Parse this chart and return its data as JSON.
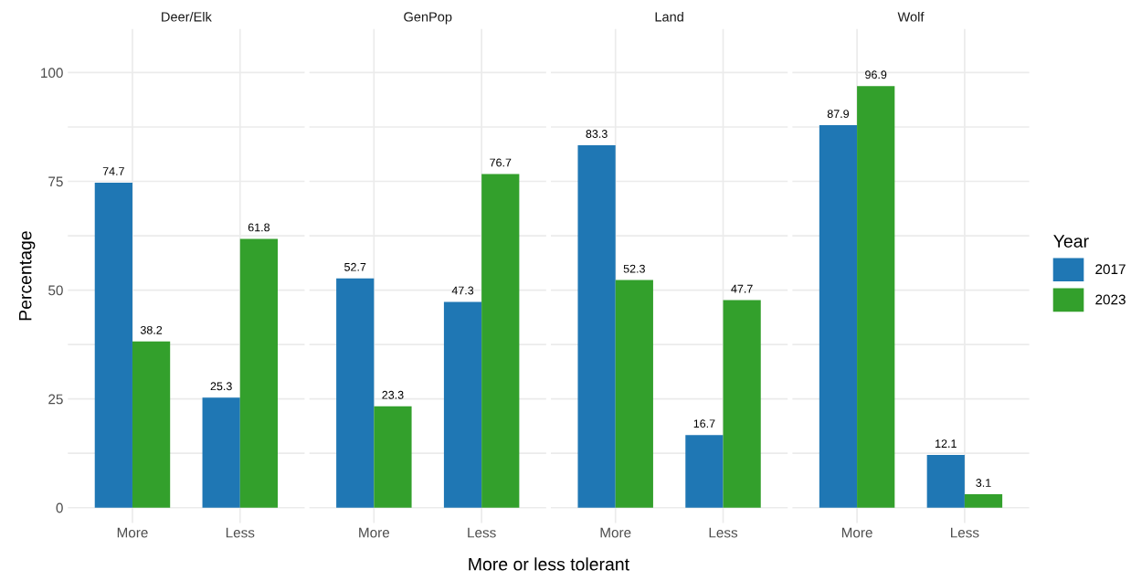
{
  "chart_data": [
    {
      "type": "bar",
      "title": "Deer/Elk",
      "ylabel": "Percentage",
      "categories": [
        "More",
        "Less"
      ],
      "series": [
        {
          "name": "2017",
          "color": "#1f77b4",
          "values": [
            74.7,
            25.3
          ]
        },
        {
          "name": "2023",
          "color": "#33a02c",
          "values": [
            38.2,
            61.8
          ]
        }
      ],
      "ylim": [
        -3.5,
        110
      ],
      "yticks": [
        0,
        {
          "value": 12.5,
          "label": null
        },
        25,
        {
          "value": 37.5,
          "label": null
        },
        50,
        {
          "value": 62.5,
          "label": null
        },
        75,
        {
          "value": 87.5,
          "label": null
        },
        100
      ],
      "grid": true,
      "data_labels": true,
      "legend": "right",
      "legend_title": "Year"
    },
    {
      "type": "bar",
      "title": "GenPop",
      "xlabel": "More or less tolerant",
      "categories": [
        "More",
        "Less"
      ],
      "series": [
        {
          "color": "#1f77b4",
          "values": [
            52.7,
            47.3
          ]
        },
        {
          "color": "#33a02c",
          "values": [
            23.3,
            76.7
          ]
        }
      ],
      "ylim": [
        -3.5,
        110
      ],
      "yticks": [
        0,
        {
          "value": 12.5,
          "label": null
        },
        25,
        {
          "value": 37.5,
          "label": null
        },
        50,
        {
          "value": 62.5,
          "label": null
        },
        75,
        {
          "value": 87.5,
          "label": null
        },
        100
      ],
      "tick_labels": "x",
      "grid": true,
      "data_labels": true
    },
    {
      "type": "bar",
      "title": "Land",
      "categories": [
        "More",
        "Less"
      ],
      "series": [
        {
          "color": "#1f77b4",
          "values": [
            83.3,
            16.7
          ]
        },
        {
          "color": "#33a02c",
          "values": [
            52.3,
            47.7
          ]
        }
      ],
      "ylim": [
        -3.5,
        110
      ],
      "yticks": [
        0,
        {
          "value": 12.5,
          "label": null
        },
        25,
        {
          "value": 37.5,
          "label": null
        },
        50,
        {
          "value": 62.5,
          "label": null
        },
        75,
        {
          "value": 87.5,
          "label": null
        },
        100
      ],
      "tick_labels": "x",
      "grid": true,
      "data_labels": true
    },
    {
      "type": "bar",
      "title": "Wolf",
      "categories": [
        "More",
        "Less"
      ],
      "series": [
        {
          "color": "#1f77b4",
          "values": [
            87.9,
            12.1
          ]
        },
        {
          "color": "#33a02c",
          "values": [
            96.9,
            3.1
          ]
        }
      ],
      "ylim": [
        -3.5,
        110
      ],
      "yticks": [
        0,
        {
          "value": 12.5,
          "label": null
        },
        25,
        {
          "value": 37.5,
          "label": null
        },
        50,
        {
          "value": 62.5,
          "label": null
        },
        75,
        {
          "value": 87.5,
          "label": null
        },
        100
      ],
      "tick_labels": "x",
      "grid": true,
      "data_labels": true
    }
  ]
}
